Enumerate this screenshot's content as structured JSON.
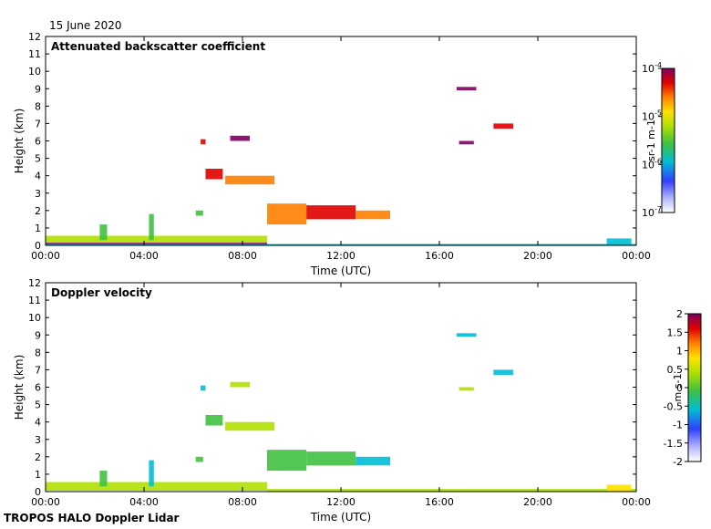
{
  "date": "15 June 2020",
  "footer": "TROPOS HALO Doppler Lidar",
  "chart_data": [
    {
      "type": "heatmap",
      "title": "Attenuated backscatter coefficient",
      "xlabel": "Time (UTC)",
      "ylabel": "Height (km)",
      "xlim": [
        0,
        24
      ],
      "ylim": [
        0,
        12
      ],
      "xticks": [
        "00:00",
        "04:00",
        "08:00",
        "12:00",
        "16:00",
        "20:00",
        "00:00"
      ],
      "yticks": [
        0,
        1,
        2,
        3,
        4,
        5,
        6,
        7,
        8,
        9,
        10,
        11,
        12
      ],
      "grid": false,
      "colorbar": {
        "label": "sr-1 m-1",
        "scale": "log",
        "range": [
          1e-07,
          0.0001
        ],
        "tick_labels": [
          {
            "base": "10",
            "exp": "-4",
            "value": -4
          },
          {
            "base": "10",
            "exp": "-5",
            "value": -5
          },
          {
            "base": "10",
            "exp": "-6",
            "value": -6
          },
          {
            "base": "10",
            "exp": "-7",
            "value": -7
          }
        ]
      },
      "features": [
        {
          "t0": 0.0,
          "t1": 9.0,
          "h0": 0.15,
          "h1": 0.55,
          "c": 0.45
        },
        {
          "t0": 0.0,
          "t1": 9.0,
          "h0": 0.0,
          "h1": 0.15,
          "c": 0.95
        },
        {
          "t0": 0.0,
          "t1": 24.0,
          "h0": 0.0,
          "h1": 0.08,
          "c": 0.3
        },
        {
          "t0": 2.2,
          "t1": 2.5,
          "h0": 0.3,
          "h1": 1.2,
          "c": 0.35
        },
        {
          "t0": 4.2,
          "t1": 4.4,
          "h0": 0.3,
          "h1": 1.8,
          "c": 0.4
        },
        {
          "t0": 6.1,
          "t1": 6.4,
          "h0": 1.7,
          "h1": 2.0,
          "c": 0.35
        },
        {
          "t0": 6.3,
          "t1": 6.5,
          "h0": 5.8,
          "h1": 6.1,
          "c": 0.8
        },
        {
          "t0": 6.5,
          "t1": 7.2,
          "h0": 3.8,
          "h1": 4.4,
          "c": 0.85
        },
        {
          "t0": 7.5,
          "t1": 8.3,
          "h0": 6.0,
          "h1": 6.3,
          "c": 0.9
        },
        {
          "t0": 7.3,
          "t1": 9.3,
          "h0": 3.5,
          "h1": 4.0,
          "c": 0.75
        },
        {
          "t0": 9.0,
          "t1": 10.6,
          "h0": 1.2,
          "h1": 2.4,
          "c": 0.7
        },
        {
          "t0": 10.6,
          "t1": 12.6,
          "h0": 1.5,
          "h1": 2.3,
          "c": 0.8
        },
        {
          "t0": 12.6,
          "t1": 14.0,
          "h0": 1.5,
          "h1": 2.0,
          "c": 0.75
        },
        {
          "t0": 16.7,
          "t1": 17.5,
          "h0": 8.9,
          "h1": 9.1,
          "c": 0.9
        },
        {
          "t0": 16.8,
          "t1": 17.4,
          "h0": 5.8,
          "h1": 6.0,
          "c": 0.9
        },
        {
          "t0": 18.2,
          "t1": 19.0,
          "h0": 6.7,
          "h1": 7.0,
          "c": 0.85
        },
        {
          "t0": 22.8,
          "t1": 23.8,
          "h0": 0.0,
          "h1": 0.4,
          "c": 0.3
        }
      ]
    },
    {
      "type": "heatmap",
      "title": "Doppler velocity",
      "xlabel": "Time (UTC)",
      "ylabel": "Height (km)",
      "xlim": [
        0,
        24
      ],
      "ylim": [
        0,
        12
      ],
      "xticks": [
        "00:00",
        "04:00",
        "08:00",
        "12:00",
        "16:00",
        "20:00",
        "00:00"
      ],
      "yticks": [
        0,
        1,
        2,
        3,
        4,
        5,
        6,
        7,
        8,
        9,
        10,
        11,
        12
      ],
      "grid": false,
      "colorbar": {
        "label": "m s-1",
        "scale": "linear",
        "range": [
          -2,
          2
        ],
        "tick_labels": [
          "2",
          "1.5",
          "1",
          "0.5",
          "0",
          "-0.5",
          "-1",
          "-1.5",
          "-2"
        ]
      },
      "features": [
        {
          "t0": 0.0,
          "t1": 9.0,
          "h0": 0.05,
          "h1": 0.55,
          "c": 0.1
        },
        {
          "t0": 9.0,
          "t1": 24.0,
          "h0": 0.0,
          "h1": 0.15,
          "c": -0.2
        },
        {
          "t0": 2.2,
          "t1": 2.5,
          "h0": 0.3,
          "h1": 1.2,
          "c": -0.3
        },
        {
          "t0": 4.2,
          "t1": 4.4,
          "h0": 0.3,
          "h1": 1.8,
          "c": -0.8
        },
        {
          "t0": 6.1,
          "t1": 6.4,
          "h0": 1.7,
          "h1": 2.0,
          "c": -0.6
        },
        {
          "t0": 6.3,
          "t1": 6.5,
          "h0": 5.8,
          "h1": 6.1,
          "c": -0.8
        },
        {
          "t0": 6.5,
          "t1": 7.2,
          "h0": 3.8,
          "h1": 4.4,
          "c": -0.4
        },
        {
          "t0": 7.5,
          "t1": 8.3,
          "h0": 6.0,
          "h1": 6.3,
          "c": 0.2
        },
        {
          "t0": 7.3,
          "t1": 9.3,
          "h0": 3.5,
          "h1": 4.0,
          "c": -0.2
        },
        {
          "t0": 9.0,
          "t1": 10.6,
          "h0": 1.2,
          "h1": 2.4,
          "c": -0.6
        },
        {
          "t0": 10.6,
          "t1": 12.6,
          "h0": 1.5,
          "h1": 2.3,
          "c": -0.5
        },
        {
          "t0": 12.6,
          "t1": 14.0,
          "h0": 1.5,
          "h1": 2.0,
          "c": -0.7
        },
        {
          "t0": 16.7,
          "t1": 17.5,
          "h0": 8.9,
          "h1": 9.1,
          "c": -0.9
        },
        {
          "t0": 16.8,
          "t1": 17.4,
          "h0": 5.8,
          "h1": 6.0,
          "c": 0.1
        },
        {
          "t0": 18.2,
          "t1": 19.0,
          "h0": 6.7,
          "h1": 7.0,
          "c": -0.8
        },
        {
          "t0": 22.8,
          "t1": 23.8,
          "h0": 0.0,
          "h1": 0.4,
          "c": 0.5
        }
      ]
    }
  ]
}
